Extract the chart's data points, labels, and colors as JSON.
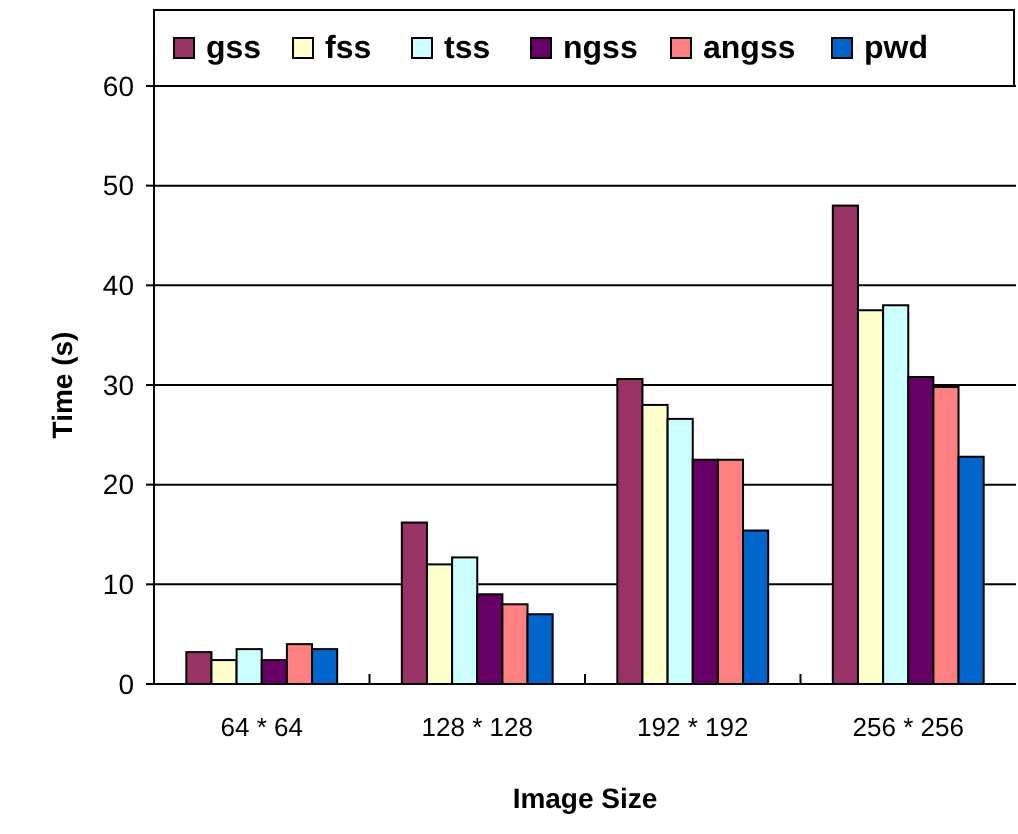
{
  "chart_data": {
    "type": "bar",
    "xlabel": "Image Size",
    "ylabel": "Time (s)",
    "categories": [
      "64 * 64",
      "128 * 128",
      "192 * 192",
      "256 * 256"
    ],
    "series": [
      {
        "name": "gss",
        "color": "#993366",
        "values": [
          3.2,
          16.2,
          30.6,
          48
        ]
      },
      {
        "name": "fss",
        "color": "#ffffcc",
        "values": [
          2.4,
          12,
          28,
          37.5
        ]
      },
      {
        "name": "tss",
        "color": "#ccffff",
        "values": [
          3.5,
          12.7,
          26.6,
          38
        ]
      },
      {
        "name": "ngss",
        "color": "#660066",
        "values": [
          2.4,
          9,
          22.5,
          30.8
        ]
      },
      {
        "name": "angss",
        "color": "#ff8080",
        "values": [
          4,
          8,
          22.5,
          29.8
        ]
      },
      {
        "name": "pwd",
        "color": "#0066cc",
        "values": [
          3.5,
          7,
          15.4,
          22.8
        ]
      }
    ],
    "ylim": [
      0,
      60
    ],
    "yticks": [
      0,
      10,
      20,
      30,
      40,
      50,
      60
    ],
    "grid": "y",
    "legend": "top"
  }
}
